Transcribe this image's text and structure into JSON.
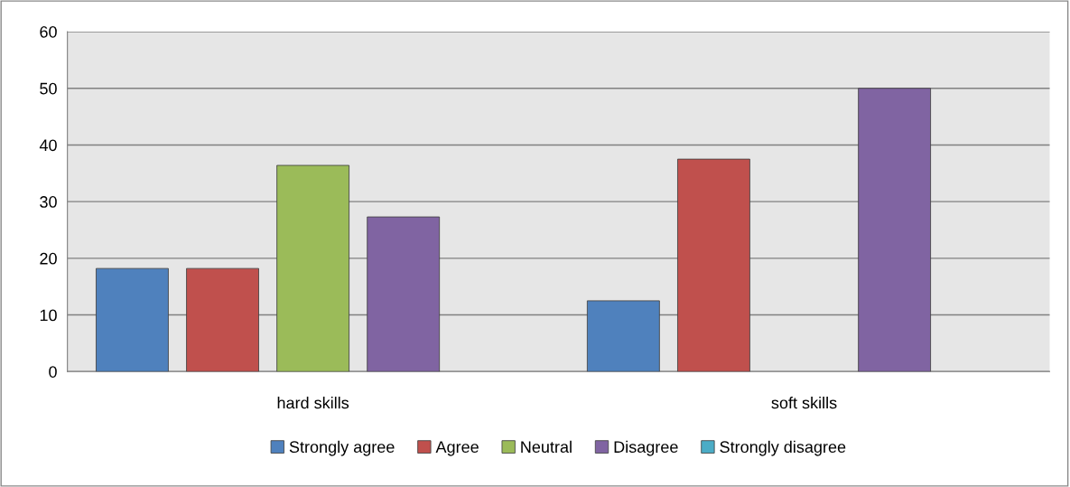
{
  "chart_data": {
    "type": "bar",
    "categories": [
      "hard skills",
      "soft skills"
    ],
    "series": [
      {
        "name": "Strongly agree",
        "color": "#4f81bd",
        "values": [
          18.2,
          12.5
        ]
      },
      {
        "name": "Agree",
        "color": "#c0504d",
        "values": [
          18.2,
          37.5
        ]
      },
      {
        "name": "Neutral",
        "color": "#9bbb59",
        "values": [
          36.4,
          0
        ]
      },
      {
        "name": "Disagree",
        "color": "#8064a2",
        "values": [
          27.3,
          50
        ]
      },
      {
        "name": "Strongly disagree",
        "color": "#4bacc6",
        "values": [
          0,
          0
        ]
      }
    ],
    "ylim": [
      0,
      60
    ],
    "yticks": [
      0,
      10,
      20,
      30,
      40,
      50,
      60
    ],
    "grid": "y",
    "legend": "bottom"
  }
}
